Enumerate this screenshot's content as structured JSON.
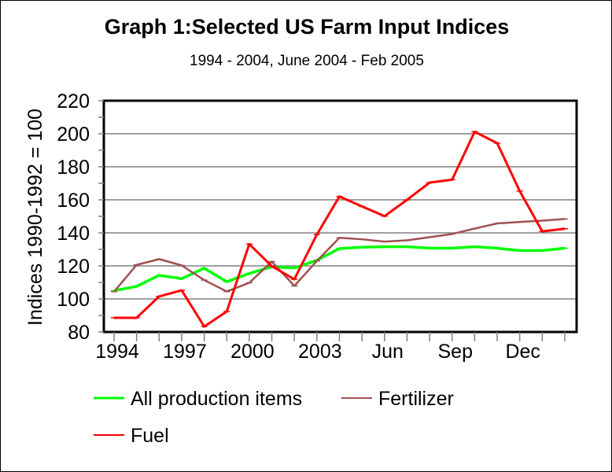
{
  "chart_data": {
    "type": "line",
    "title": "Graph 1:Selected US Farm Input Indices",
    "subtitle": "1994 - 2004, June 2004 - Feb 2005",
    "xlabel": "",
    "ylabel": "Indices 1990-1992 = 100",
    "ylim": [
      80,
      220
    ],
    "yticks": [
      80,
      100,
      120,
      140,
      160,
      180,
      200,
      220
    ],
    "x_tick_labels": [
      "1994",
      "",
      "",
      "1997",
      "",
      "",
      "2000",
      "",
      "",
      "2003",
      "",
      "",
      "Jun",
      "",
      "",
      "Sep",
      "",
      "",
      "Dec",
      "",
      ""
    ],
    "grid": true,
    "legend_position": "bottom",
    "series": [
      {
        "name": "All production items",
        "color": "#00ff00",
        "values": [
          105,
          107.6,
          114.3,
          112.3,
          118.6,
          110.4,
          115.4,
          119.5,
          118.7,
          123.4,
          130.5,
          131.3,
          131.6,
          131.6,
          130.7,
          130.7,
          131.6,
          130.7,
          129.3,
          129.3,
          130.7
        ]
      },
      {
        "name": "Fertilizer",
        "color": "#a05050",
        "values": [
          104.4,
          120.6,
          124.1,
          120.3,
          111.4,
          104.5,
          109.8,
          122.6,
          107.9,
          123,
          137,
          136.1,
          134.7,
          135.5,
          137.4,
          139.3,
          142.6,
          145.7,
          146.6,
          147.4,
          148.4
        ]
      },
      {
        "name": "Fuel",
        "color": "#ff0000",
        "values": [
          88.6,
          88.6,
          101.5,
          105.2,
          83.3,
          92.4,
          133.2,
          119.8,
          111.9,
          139,
          162,
          156,
          150.1,
          160,
          170.4,
          172.2,
          201.2,
          194.3,
          165.3,
          140.9,
          142.5
        ]
      }
    ]
  }
}
